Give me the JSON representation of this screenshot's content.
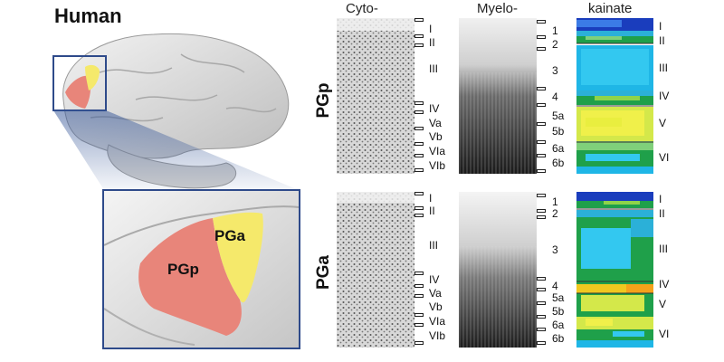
{
  "title": "Human",
  "columns": [
    "Cyto-",
    "Myelo-",
    "kainate"
  ],
  "rows": [
    {
      "label": "PGp",
      "cyto_layers": [
        "I",
        "II",
        "III",
        "IV",
        "Va",
        "Vb",
        "VIa",
        "VIb"
      ],
      "myelo_layers": [
        "1",
        "2",
        "3",
        "4",
        "5a",
        "5b",
        "6a",
        "6b"
      ],
      "kainate_layers": [
        "I",
        "II",
        "III",
        "IV",
        "V",
        "VI"
      ]
    },
    {
      "label": "PGa",
      "cyto_layers": [
        "I",
        "II",
        "III",
        "IV",
        "Va",
        "Vb",
        "VIa",
        "VIb"
      ],
      "myelo_layers": [
        "1",
        "2",
        "3",
        "4",
        "5a",
        "5b",
        "6a",
        "6b"
      ],
      "kainate_layers": [
        "I",
        "II",
        "III",
        "IV",
        "V",
        "VI"
      ]
    }
  ],
  "inset_regions": [
    "PGp",
    "PGa"
  ],
  "colors": {
    "pgp": "#e8857a",
    "pga": "#f5e96b",
    "frame": "#2e4a8a"
  }
}
